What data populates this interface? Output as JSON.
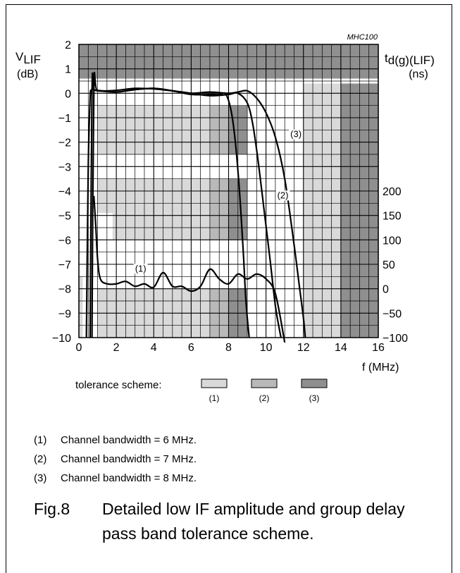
{
  "figure": {
    "code": "MHC100",
    "caption_number": "Fig.8",
    "caption_text": "Detailed low IF amplitude and group delay pass band tolerance scheme."
  },
  "notes": [
    {
      "num": "(1)",
      "text": "Channel bandwidth = 6 MHz."
    },
    {
      "num": "(2)",
      "text": "Channel bandwidth = 7 MHz."
    },
    {
      "num": "(3)",
      "text": "Channel bandwidth = 8 MHz."
    }
  ],
  "legend": {
    "label": "tolerance scheme:",
    "items": [
      {
        "label": "(1)",
        "color": "#d9d9d9"
      },
      {
        "label": "(2)",
        "color": "#b9b9b9"
      },
      {
        "label": "(3)",
        "color": "#8f8f8f"
      }
    ]
  },
  "chart_data": {
    "type": "line",
    "title": "",
    "xlabel": "f (MHz)",
    "ylabel_left_main": "V",
    "ylabel_left_sub": "LIF",
    "ylabel_left_unit": "(dB)",
    "ylabel_right_main": "t",
    "ylabel_right_sub": "d(g)(LIF)",
    "ylabel_right_unit": "(ns)",
    "xlim": [
      0,
      16
    ],
    "ylim": [
      -10,
      2
    ],
    "x_ticks": [
      0,
      2,
      4,
      6,
      8,
      10,
      12,
      14,
      16
    ],
    "y_ticks_left": [
      2,
      1,
      0,
      -1,
      -2,
      -3,
      -4,
      -5,
      -6,
      -7,
      -8,
      -9,
      -10
    ],
    "y_ticks_right": [
      {
        "label": "200",
        "at_db": -4
      },
      {
        "label": "150",
        "at_db": -5
      },
      {
        "label": "100",
        "at_db": -6
      },
      {
        "label": "50",
        "at_db": -7
      },
      {
        "label": "0",
        "at_db": -8
      },
      {
        "label": "−50",
        "at_db": -9
      },
      {
        "label": "−100",
        "at_db": -10
      }
    ],
    "grid": true,
    "tolerance_regions": [
      {
        "scheme": 3,
        "x0": 0,
        "x1": 16,
        "y0": 0.6,
        "y1": 2
      },
      {
        "scheme": 1,
        "x0": 12,
        "x1": 14,
        "y0": -10,
        "y1": 0.4
      },
      {
        "scheme": 3,
        "x0": 14,
        "x1": 16,
        "y0": -10,
        "y1": 0.4
      },
      {
        "scheme": 1,
        "x0": 0,
        "x1": 0.2,
        "y0": -10,
        "y1": -7.5
      },
      {
        "scheme": 1,
        "x0": 1,
        "x1": 7,
        "y0": -0.5,
        "y1": -2.5
      },
      {
        "scheme": 2,
        "x0": 7,
        "x1": 8,
        "y0": -0.5,
        "y1": -2.5
      },
      {
        "scheme": 3,
        "x0": 8,
        "x1": 9,
        "y0": -0.5,
        "y1": -2.5
      },
      {
        "scheme": 1,
        "x0": 1,
        "x1": 7,
        "y0": -3.5,
        "y1": -4.9
      },
      {
        "scheme": 1,
        "x0": 1.8,
        "x1": 7,
        "y0": -4.9,
        "y1": -6.0
      },
      {
        "scheme": 2,
        "x0": 7,
        "x1": 8,
        "y0": -3.5,
        "y1": -6.0
      },
      {
        "scheme": 3,
        "x0": 8,
        "x1": 9,
        "y0": -3.5,
        "y1": -6.0
      },
      {
        "scheme": 1,
        "x0": 1,
        "x1": 7,
        "y0": -8.0,
        "y1": -10
      },
      {
        "scheme": 2,
        "x0": 7,
        "x1": 8,
        "y0": -8.0,
        "y1": -10
      },
      {
        "scheme": 3,
        "x0": 8,
        "x1": 9,
        "y0": -8.0,
        "y1": -10
      }
    ],
    "curve_labels": [
      {
        "text": "(1)",
        "x": 3.3,
        "y": -7.3
      },
      {
        "text": "(2)",
        "x": 10.9,
        "y": -4.3
      },
      {
        "text": "(3)",
        "x": 11.6,
        "y": -1.8
      }
    ],
    "series": [
      {
        "name": "(1)",
        "role": "amplitude",
        "x": [
          0.4,
          0.5,
          0.6,
          0.65,
          0.7,
          0.8,
          1,
          2,
          3,
          4,
          5,
          6,
          7,
          7.5,
          7.8,
          8.0,
          8.2,
          8.4,
          8.6,
          8.8,
          8.9,
          9.0,
          9.1
        ],
        "y": [
          -10,
          -3,
          -0.2,
          0.1,
          0.15,
          0.15,
          0.12,
          0.05,
          0.15,
          0.2,
          0.1,
          -0.05,
          -0.05,
          -0.05,
          0,
          -0.3,
          -1.0,
          -2.3,
          -4.2,
          -6.7,
          -8.2,
          -9.2,
          -10
        ]
      },
      {
        "name": "(2)",
        "role": "amplitude",
        "x": [
          0.6,
          0.7,
          0.8,
          1,
          2,
          3,
          4,
          5,
          6,
          7,
          8,
          8.5,
          9,
          9.3,
          9.6,
          9.9,
          10.2,
          10.5,
          10.7,
          10.8
        ],
        "y": [
          -10,
          0.05,
          0.15,
          0.1,
          0.12,
          0.2,
          0.18,
          0.1,
          0,
          -0.1,
          -0.05,
          0,
          -0.4,
          -1.3,
          -2.9,
          -4.8,
          -6.7,
          -8.7,
          -9.6,
          -10
        ]
      },
      {
        "name": "(3)",
        "role": "amplitude",
        "x": [
          0.7,
          0.8,
          1,
          2,
          3,
          4,
          5,
          6,
          7,
          8,
          8.5,
          9,
          9.5,
          10,
          10.5,
          11,
          11.5,
          11.8,
          12,
          12.1
        ],
        "y": [
          -10,
          0.1,
          0.1,
          0.05,
          0.15,
          0.2,
          0.1,
          0.0,
          0.05,
          0.0,
          0.05,
          0.1,
          -0.2,
          -0.8,
          -1.8,
          -3.5,
          -6.2,
          -8.0,
          -9.2,
          -10
        ]
      },
      {
        "name": "(1)",
        "role": "group_delay",
        "x": [
          0.8,
          0.9,
          1.0,
          1.15,
          1.5,
          2,
          2.5,
          3,
          3.5,
          4,
          4.5,
          5,
          5.5,
          6,
          6.5,
          7,
          7.5,
          8,
          8.5,
          9,
          9.5,
          10,
          10.5,
          11
        ],
        "y": [
          190,
          130,
          60,
          20,
          10,
          10,
          15,
          5,
          10,
          3,
          33,
          5,
          5,
          -5,
          5,
          40,
          20,
          10,
          30,
          20,
          30,
          20,
          -10,
          -110
        ]
      }
    ]
  }
}
